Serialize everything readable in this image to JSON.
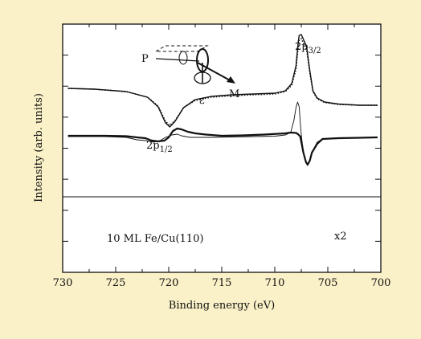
{
  "colors": {
    "background": "#fbf1c8",
    "plot_background": "#ffffff",
    "ink": "#111111"
  },
  "chart_data": {
    "type": "line",
    "xlabel": "Binding energy (eV)",
    "ylabel": "Intensity (arb. units)",
    "xlim": [
      730,
      700
    ],
    "x_reversed": true,
    "x_ticks": [
      730,
      725,
      720,
      715,
      710,
      705,
      700
    ],
    "y_ticks": 7,
    "grid": false,
    "annotations": {
      "peak_32_base": "2p",
      "peak_32_sub": "3/2",
      "peak_12_base": "2p",
      "peak_12_sub": "1/2",
      "sample": "10 ML Fe/Cu(110)",
      "factor": "x2",
      "geometry_P": "P",
      "geometry_M": "M",
      "geometry_eps": "ε"
    },
    "series": [
      {
        "style": "solid",
        "points": [
          [
            729.5,
            80
          ],
          [
            727,
            81
          ],
          [
            724,
            84
          ],
          [
            722,
            91
          ],
          [
            721,
            103
          ],
          [
            720.3,
            123
          ],
          [
            719.9,
            128
          ],
          [
            719.4,
            121
          ],
          [
            718.6,
            104
          ],
          [
            717.5,
            94
          ],
          [
            716,
            90
          ],
          [
            714,
            88
          ],
          [
            712,
            87
          ],
          [
            710,
            86
          ],
          [
            709,
            83
          ],
          [
            708.4,
            74
          ],
          [
            708,
            52
          ],
          [
            707.8,
            24
          ],
          [
            707.7,
            14
          ],
          [
            707.5,
            13
          ],
          [
            707,
            28
          ],
          [
            706.7,
            58
          ],
          [
            706.4,
            83
          ],
          [
            706,
            92
          ],
          [
            705.3,
            97
          ],
          [
            704,
            99.5
          ],
          [
            702,
            101
          ],
          [
            700.3,
            101
          ]
        ]
      },
      {
        "style": "dotted",
        "points": [
          [
            729.5,
            80
          ],
          [
            727,
            81
          ],
          [
            724,
            84
          ],
          [
            722,
            91
          ],
          [
            721,
            102
          ],
          [
            720.3,
            121
          ],
          [
            719.9,
            126
          ],
          [
            719.4,
            120
          ],
          [
            718.6,
            104
          ],
          [
            717.5,
            95
          ],
          [
            716,
            91
          ],
          [
            714,
            89
          ],
          [
            712,
            88
          ],
          [
            710,
            87
          ],
          [
            709,
            84
          ],
          [
            708.4,
            76
          ],
          [
            708,
            56
          ],
          [
            707.8,
            30
          ],
          [
            707.7,
            20
          ],
          [
            707.5,
            18
          ],
          [
            707,
            32
          ],
          [
            706.7,
            60
          ],
          [
            706.4,
            84
          ],
          [
            706,
            93
          ],
          [
            705.3,
            97.5
          ],
          [
            704,
            100
          ],
          [
            702,
            101
          ],
          [
            700.3,
            101
          ]
        ]
      },
      {
        "style": "thin",
        "points": [
          [
            729.5,
            140
          ],
          [
            726,
            140
          ],
          [
            724,
            141
          ],
          [
            723,
            144
          ],
          [
            722.2,
            145
          ],
          [
            721.4,
            147
          ],
          [
            720.8,
            145
          ],
          [
            720.3,
            141
          ],
          [
            719.7,
            138
          ],
          [
            719.2,
            137
          ],
          [
            718.8,
            139
          ],
          [
            718,
            141
          ],
          [
            716,
            141
          ],
          [
            714,
            140.5
          ],
          [
            712,
            140
          ],
          [
            710,
            139.5
          ],
          [
            709,
            138
          ],
          [
            708.5,
            135
          ],
          [
            708.2,
            120
          ],
          [
            708,
            104
          ],
          [
            707.85,
            97
          ],
          [
            707.7,
            103
          ],
          [
            707.55,
            130
          ],
          [
            707.45,
            144
          ],
          [
            707.3,
            158
          ],
          [
            707.05,
            172
          ],
          [
            706.9,
            176
          ],
          [
            706.7,
            170
          ],
          [
            706.5,
            160
          ],
          [
            706,
            147
          ],
          [
            705.5,
            143
          ],
          [
            704,
            142
          ],
          [
            702,
            141.5
          ],
          [
            700.3,
            141
          ]
        ]
      },
      {
        "style": "thick",
        "points": [
          [
            729.5,
            139
          ],
          [
            726,
            139
          ],
          [
            724,
            139.5
          ],
          [
            723,
            141
          ],
          [
            722.2,
            142
          ],
          [
            721.6,
            145
          ],
          [
            721,
            146
          ],
          [
            720.4,
            145
          ],
          [
            720,
            141
          ],
          [
            719.6,
            133
          ],
          [
            719.2,
            130
          ],
          [
            718.8,
            131
          ],
          [
            718.2,
            134
          ],
          [
            717.5,
            136
          ],
          [
            716.5,
            137.5
          ],
          [
            715,
            139
          ],
          [
            713,
            138.5
          ],
          [
            711,
            137.5
          ],
          [
            709,
            136
          ],
          [
            708.5,
            135
          ],
          [
            708,
            135.5
          ],
          [
            707.8,
            137
          ],
          [
            707.6,
            140
          ],
          [
            707.45,
            150
          ],
          [
            707.3,
            160
          ],
          [
            707.05,
            172
          ],
          [
            706.9,
            175
          ],
          [
            706.7,
            170
          ],
          [
            706.5,
            160
          ],
          [
            706,
            149
          ],
          [
            705.5,
            143
          ],
          [
            704,
            142
          ],
          [
            702,
            141.5
          ],
          [
            700.3,
            141
          ]
        ]
      }
    ]
  }
}
